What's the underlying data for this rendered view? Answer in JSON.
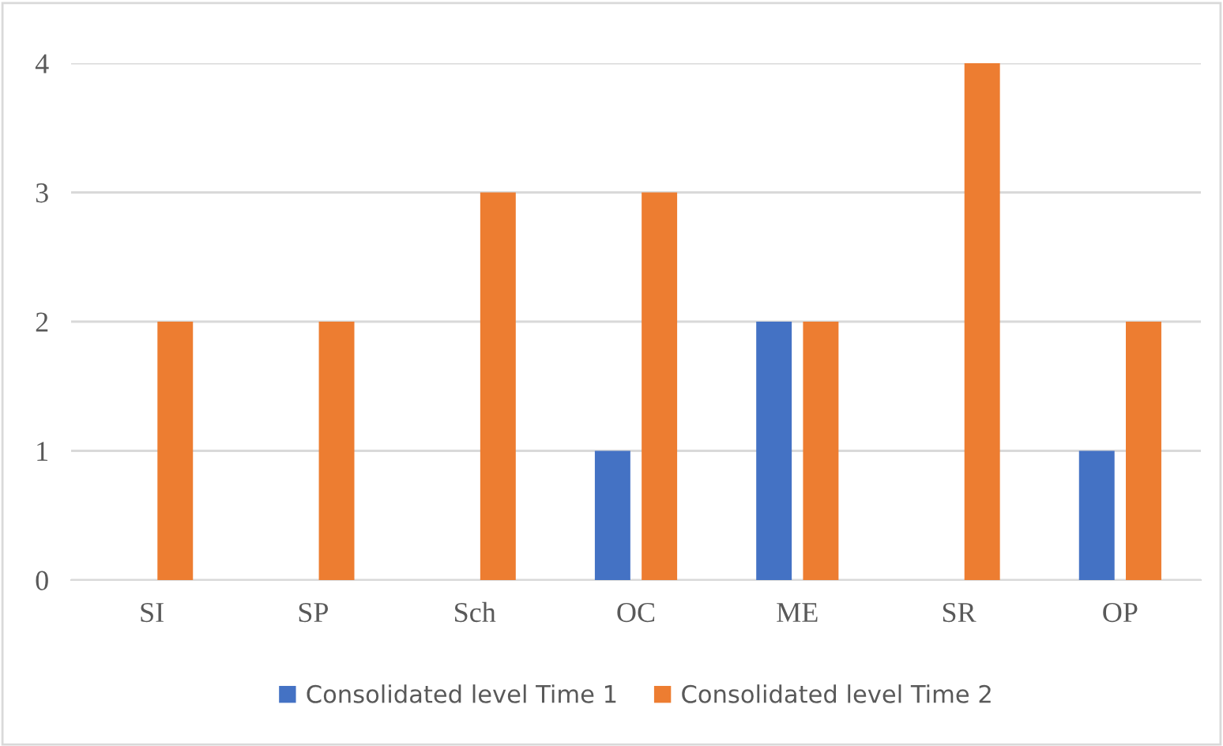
{
  "chart_data": {
    "type": "bar",
    "categories": [
      "SI",
      "SP",
      "Sch",
      "OC",
      "ME",
      "SR",
      "OP"
    ],
    "series": [
      {
        "name": "Consolidated level Time 1",
        "color": "#4472c4",
        "values": [
          0,
          0,
          0,
          1,
          2,
          0,
          1
        ]
      },
      {
        "name": "Consolidated level Time 2",
        "color": "#ed7d31",
        "values": [
          2,
          2,
          3,
          3,
          2,
          4,
          2
        ]
      }
    ],
    "ylim": [
      0,
      4
    ],
    "yticks": [
      0,
      1,
      2,
      3,
      4
    ],
    "grid": "y",
    "legend": "bottom"
  }
}
